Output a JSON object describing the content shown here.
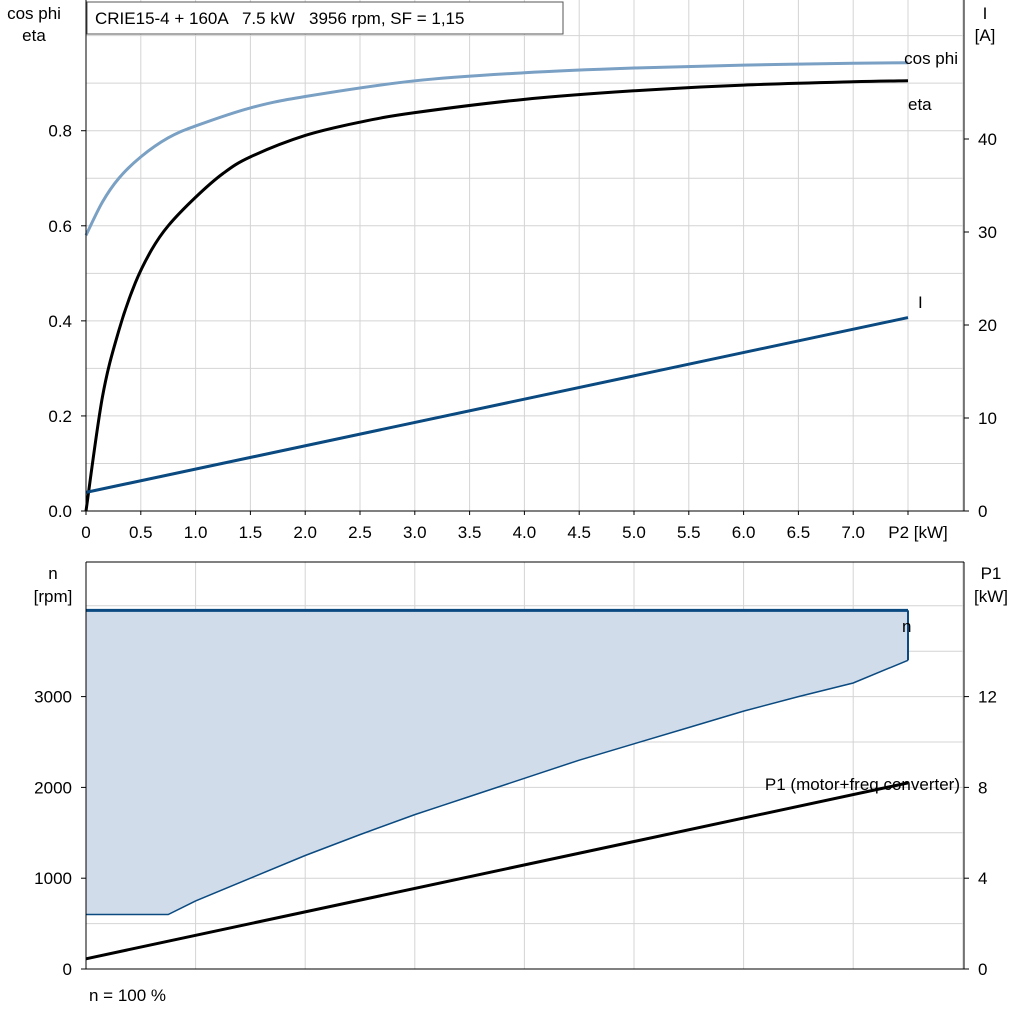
{
  "colors": {
    "cosphi": "#7aa0c4",
    "eta": "#000000",
    "current": "#0a4a80",
    "speed": "#0a4a80",
    "speed_fill": "#d0dcea",
    "p1": "#000000",
    "grid": "#d4d4d4"
  },
  "chart_data": [
    {
      "type": "line",
      "title": "CRIE15-4 + 160A   7.5 kW   3956 rpm, SF = 1,15",
      "xlabel": "P2 [kW]",
      "ylabel_left": [
        "cos phi",
        "eta"
      ],
      "ylabel_right": [
        "I",
        "[A]"
      ],
      "xlim": [
        0,
        8
      ],
      "ylim_left": [
        0,
        1
      ],
      "ylim_right": [
        0,
        50
      ],
      "x_ticks": [
        "0",
        "0.5",
        "1.0",
        "1.5",
        "2.0",
        "2.5",
        "3.0",
        "3.5",
        "4.0",
        "4.5",
        "5.0",
        "5.5",
        "6.0",
        "6.5",
        "7.0",
        "P2 [kW]"
      ],
      "y_ticks_left": [
        "0.0",
        "0.2",
        "0.4",
        "0.6",
        "0.8"
      ],
      "y_ticks_right": [
        "0",
        "10",
        "20",
        "30",
        "40"
      ],
      "grid": true,
      "series": [
        {
          "name": "cos phi",
          "axis": "left",
          "x": [
            0,
            0.15,
            0.3,
            0.5,
            0.75,
            1.0,
            1.5,
            2.0,
            3.0,
            4.0,
            5.0,
            6.0,
            7.0,
            7.5
          ],
          "y": [
            0.58,
            0.65,
            0.7,
            0.745,
            0.785,
            0.81,
            0.848,
            0.872,
            0.905,
            0.922,
            0.932,
            0.938,
            0.942,
            0.943
          ]
        },
        {
          "name": "eta",
          "axis": "left",
          "x": [
            0,
            0.15,
            0.3,
            0.45,
            0.6,
            0.75,
            1.0,
            1.25,
            1.5,
            2.0,
            2.5,
            3.0,
            4.0,
            5.0,
            6.0,
            7.0,
            7.5
          ],
          "y": [
            0.0,
            0.24,
            0.38,
            0.48,
            0.55,
            0.6,
            0.66,
            0.71,
            0.745,
            0.79,
            0.818,
            0.838,
            0.866,
            0.884,
            0.896,
            0.903,
            0.905
          ]
        },
        {
          "name": "I",
          "axis": "right",
          "x": [
            0,
            7.5
          ],
          "y": [
            2.0,
            20.8
          ]
        }
      ]
    },
    {
      "type": "area",
      "xlabel": "",
      "ylabel_left": [
        "n",
        "[rpm]"
      ],
      "ylabel_right": [
        "P1",
        "[kW]"
      ],
      "xlim": [
        0,
        8
      ],
      "ylim_left": [
        0,
        4000
      ],
      "ylim_right": [
        0,
        16
      ],
      "y_ticks_left": [
        "0",
        "1000",
        "2000",
        "3000"
      ],
      "y_ticks_right": [
        "0",
        "4",
        "8",
        "12"
      ],
      "grid": true,
      "series": [
        {
          "name": "n",
          "axis": "left",
          "x": [
            0,
            0.75,
            1.0,
            1.5,
            2.0,
            2.5,
            3.0,
            3.25,
            3.5,
            4.0,
            4.5,
            5.0,
            5.5,
            6.0,
            6.5,
            7.0,
            7.5
          ],
          "lower": [
            600,
            600,
            750,
            1000,
            1250,
            1480,
            1700,
            1800,
            1900,
            2100,
            2300,
            2480,
            2660,
            2840,
            3000,
            3150,
            3400
          ],
          "upper": [
            3950,
            3950,
            3950,
            3950,
            3950,
            3950,
            3950,
            3950,
            3950,
            3950,
            3950,
            3950,
            3950,
            3950,
            3950,
            3950,
            3950
          ]
        },
        {
          "name": "P1 (motor+freq.converter)",
          "axis": "right",
          "x": [
            0,
            7.5
          ],
          "y": [
            0.45,
            8.2
          ]
        }
      ],
      "note": "n = 100 %"
    }
  ]
}
